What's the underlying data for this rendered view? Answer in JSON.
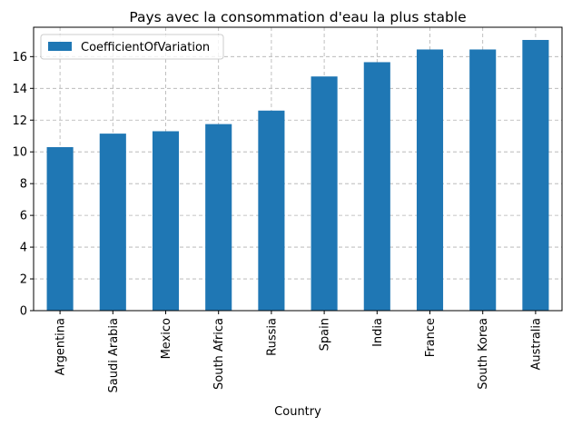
{
  "chart_data": {
    "type": "bar",
    "title": "Pays avec la consommation d'eau la plus stable",
    "xlabel": "Country",
    "ylabel": "",
    "categories": [
      "Argentina",
      "Saudi Arabia",
      "Mexico",
      "South Africa",
      "Russia",
      "Spain",
      "India",
      "France",
      "South Korea",
      "Australia"
    ],
    "series": [
      {
        "name": "CoefficientOfVariation",
        "values": [
          10.3,
          11.15,
          11.3,
          11.75,
          12.6,
          14.75,
          15.65,
          16.45,
          16.45,
          17.05
        ],
        "color": "#1f77b4"
      }
    ],
    "ylim": [
      0,
      17.85
    ],
    "yticks": [
      0,
      2,
      4,
      6,
      8,
      10,
      12,
      14,
      16
    ],
    "grid": true,
    "legend_position": "top-left"
  }
}
